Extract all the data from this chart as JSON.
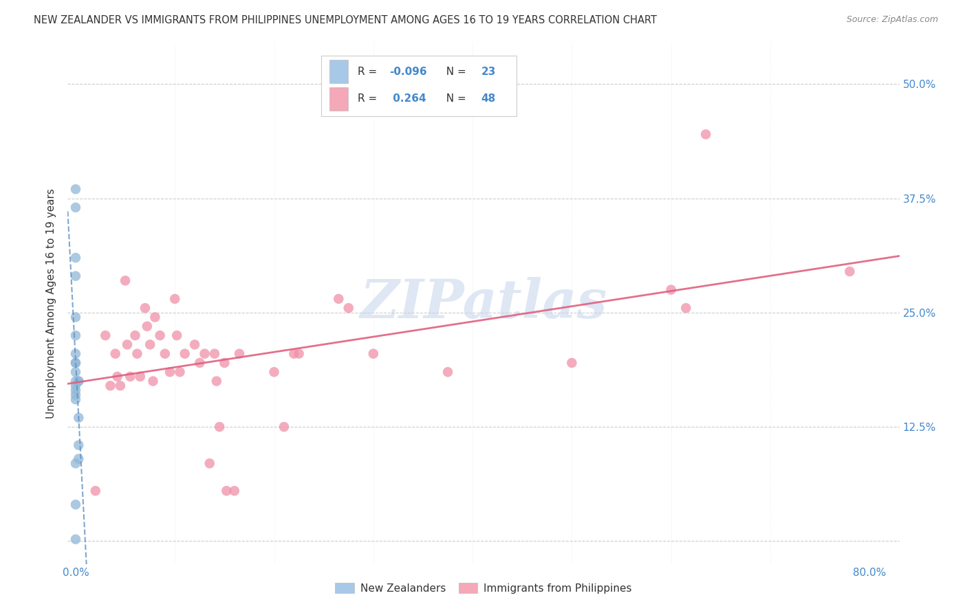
{
  "title": "NEW ZEALANDER VS IMMIGRANTS FROM PHILIPPINES UNEMPLOYMENT AMONG AGES 16 TO 19 YEARS CORRELATION CHART",
  "source": "Source: ZipAtlas.com",
  "ylabel": "Unemployment Among Ages 16 to 19 years",
  "x_ticks": [
    0.0,
    0.1,
    0.2,
    0.3,
    0.4,
    0.5,
    0.6,
    0.7,
    0.8
  ],
  "y_ticks_right": [
    0.0,
    0.125,
    0.25,
    0.375,
    0.5
  ],
  "y_tick_labels_right": [
    "",
    "12.5%",
    "25.0%",
    "37.5%",
    "50.0%"
  ],
  "xlim": [
    -0.008,
    0.83
  ],
  "ylim": [
    -0.025,
    0.545
  ],
  "blue_color": "#a8c8e8",
  "pink_color": "#f4a8b8",
  "blue_scatter_color": "#90b8d8",
  "pink_scatter_color": "#f090a8",
  "blue_line_color": "#6090c0",
  "pink_line_color": "#e06080",
  "watermark_color": "#c8d8ec",
  "grid_color": "#cccccc",
  "tick_label_color": "#4488cc",
  "title_color": "#333333",
  "source_color": "#888888",
  "bg_color": "#ffffff",
  "nz_x": [
    0.0,
    0.0,
    0.0,
    0.0,
    0.0,
    0.0,
    0.0,
    0.0,
    0.0,
    0.0,
    0.0,
    0.0,
    0.0,
    0.0,
    0.0,
    0.003,
    0.003,
    0.003,
    0.003,
    0.003,
    0.0,
    0.0,
    0.0
  ],
  "nz_y": [
    0.385,
    0.365,
    0.31,
    0.29,
    0.245,
    0.225,
    0.205,
    0.195,
    0.195,
    0.185,
    0.175,
    0.17,
    0.165,
    0.16,
    0.155,
    0.135,
    0.105,
    0.09,
    0.175,
    0.175,
    0.04,
    0.085,
    0.002
  ],
  "ph_x": [
    0.02,
    0.03,
    0.035,
    0.04,
    0.042,
    0.045,
    0.05,
    0.052,
    0.055,
    0.06,
    0.062,
    0.065,
    0.07,
    0.072,
    0.075,
    0.078,
    0.08,
    0.085,
    0.09,
    0.095,
    0.1,
    0.102,
    0.105,
    0.11,
    0.12,
    0.125,
    0.13,
    0.135,
    0.14,
    0.142,
    0.145,
    0.15,
    0.152,
    0.16,
    0.165,
    0.2,
    0.21,
    0.22,
    0.225,
    0.265,
    0.275,
    0.3,
    0.375,
    0.5,
    0.6,
    0.615,
    0.635,
    0.78
  ],
  "ph_y": [
    0.055,
    0.225,
    0.17,
    0.205,
    0.18,
    0.17,
    0.285,
    0.215,
    0.18,
    0.225,
    0.205,
    0.18,
    0.255,
    0.235,
    0.215,
    0.175,
    0.245,
    0.225,
    0.205,
    0.185,
    0.265,
    0.225,
    0.185,
    0.205,
    0.215,
    0.195,
    0.205,
    0.085,
    0.205,
    0.175,
    0.125,
    0.195,
    0.055,
    0.055,
    0.205,
    0.185,
    0.125,
    0.205,
    0.205,
    0.265,
    0.255,
    0.205,
    0.185,
    0.195,
    0.275,
    0.255,
    0.445,
    0.295
  ]
}
